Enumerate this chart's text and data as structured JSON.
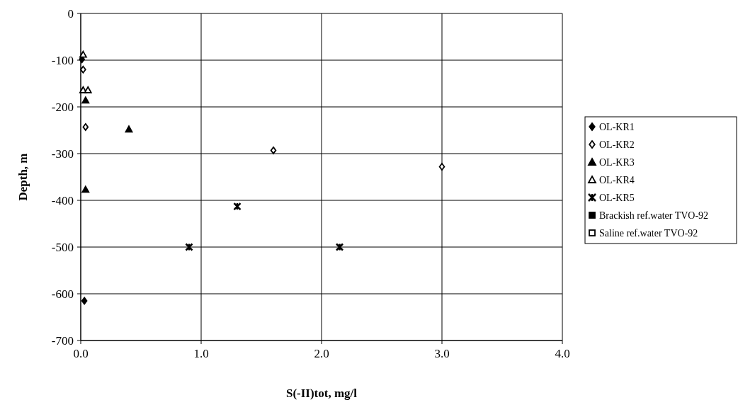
{
  "chart_data": {
    "type": "scatter",
    "xlabel": "S(-II)tot, mg/l",
    "ylabel": "Depth, m",
    "xlim": [
      0,
      4
    ],
    "xticks": [
      {
        "value": 0,
        "label": "0.0"
      },
      {
        "value": 1,
        "label": "1.0"
      },
      {
        "value": 2,
        "label": "2.0"
      },
      {
        "value": 3,
        "label": "3.0"
      },
      {
        "value": 4,
        "label": "4.0"
      }
    ],
    "ylim": [
      -700,
      0
    ],
    "yticks": [
      -700,
      -600,
      -500,
      -400,
      -300,
      -200,
      -100,
      0
    ],
    "grid": true,
    "legend": "right",
    "series": [
      {
        "name": "OL-KR1",
        "color": "#000000",
        "marker": "diamond",
        "x": [
          0.01,
          0.03
        ],
        "values": [
          -98,
          -615
        ]
      },
      {
        "name": "OL-KR2",
        "color": "#ffffff",
        "marker": "diamond",
        "x": [
          0.02,
          0.04,
          1.6,
          3.0
        ],
        "values": [
          -120,
          -243,
          -293,
          -328
        ]
      },
      {
        "name": "OL-KR3",
        "color": "#000000",
        "marker": "triangle",
        "x": [
          0.04,
          0.4,
          0.04
        ],
        "values": [
          -186,
          -248,
          -377
        ]
      },
      {
        "name": "OL-KR4",
        "color": "#ffffff",
        "marker": "triangle",
        "x": [
          0.02,
          0.02,
          0.06
        ],
        "values": [
          -88,
          -164,
          -164
        ]
      },
      {
        "name": "OL-KR5",
        "color": "#000000",
        "marker": "cross",
        "x": [
          0.9,
          1.3,
          2.15
        ],
        "values": [
          -500,
          -413,
          -500
        ]
      },
      {
        "name": "Brackish ref.water TVO-92",
        "color": "#000000",
        "marker": "square"
      },
      {
        "name": "Saline ref.water TVO-92",
        "color": "#ffffff",
        "marker": "square"
      }
    ]
  }
}
